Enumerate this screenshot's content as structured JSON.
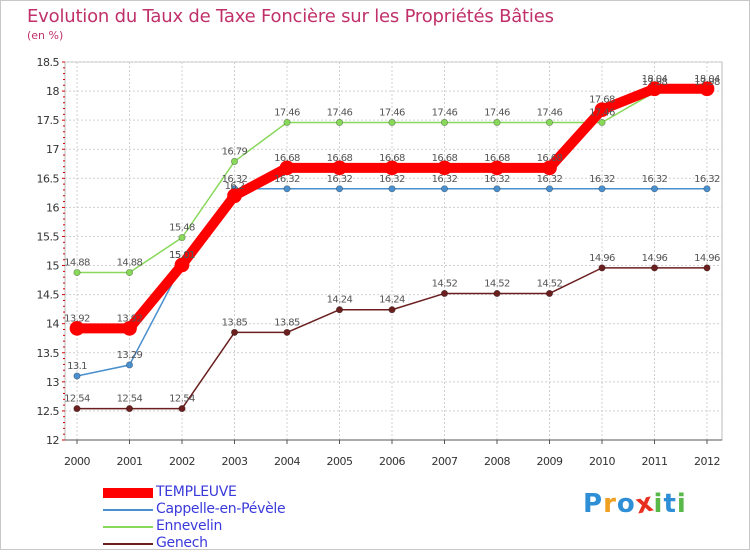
{
  "chart_data": {
    "type": "line",
    "title": "Evolution du Taux de Taxe Foncière sur les Propriétés Bâties",
    "ylabel": "(en %)",
    "xlabel": "",
    "categories": [
      "2000",
      "2001",
      "2002",
      "2003",
      "2004",
      "2005",
      "2006",
      "2007",
      "2008",
      "2009",
      "2010",
      "2011",
      "2012"
    ],
    "ylim": [
      12,
      18.5
    ],
    "yticks": [
      12,
      12.5,
      13,
      13.5,
      14,
      14.5,
      15,
      15.5,
      16,
      16.5,
      17,
      17.5,
      18,
      18.5
    ],
    "grid": true,
    "legend_position": "bottom-left",
    "series": [
      {
        "name": "TEMPLEUVE",
        "color": "#ff0000",
        "values": [
          13.92,
          13.92,
          15.01,
          16.2,
          16.68,
          16.68,
          16.68,
          16.68,
          16.68,
          16.68,
          17.68,
          18.04,
          18.04
        ],
        "labels": [
          "13.92",
          "13.92",
          "15.01",
          "16.2",
          "16.68",
          "16.68",
          "16.68",
          "16.68",
          "16.68",
          "16.68",
          "17.68",
          "18.04",
          "18.04"
        ]
      },
      {
        "name": "Cappelle-en-Pévèle",
        "color": "#4a8fce",
        "values": [
          13.1,
          13.29,
          15.01,
          16.32,
          16.32,
          16.32,
          16.32,
          16.32,
          16.32,
          16.32,
          16.32,
          16.32,
          16.32
        ],
        "labels": [
          "13.1",
          "13.29",
          "15.01",
          "16.32",
          "16.32",
          "16.32",
          "16.32",
          "16.32",
          "16.32",
          "16.32",
          "16.32",
          "16.32",
          "16.32"
        ]
      },
      {
        "name": "Ennevelin",
        "color": "#88d85a",
        "values": [
          14.88,
          14.88,
          15.48,
          16.79,
          17.46,
          17.46,
          17.46,
          17.46,
          17.46,
          17.46,
          17.46,
          17.98,
          17.98
        ],
        "labels": [
          "14.88",
          "14.88",
          "15.48",
          "16.79",
          "17.46",
          "17.46",
          "17.46",
          "17.46",
          "17.46",
          "17.46",
          "17.46",
          "17.98",
          "17.98"
        ]
      },
      {
        "name": "Genech",
        "color": "#6b1f1f",
        "values": [
          12.54,
          12.54,
          12.54,
          13.85,
          13.85,
          14.24,
          14.24,
          14.52,
          14.52,
          14.52,
          14.96,
          14.96,
          14.96
        ],
        "labels": [
          "12.54",
          "12.54",
          "12.54",
          "13.85",
          "13.85",
          "14.24",
          "14.24",
          "14.52",
          "14.52",
          "14.52",
          "14.96",
          "14.96",
          "14.96"
        ]
      }
    ]
  },
  "branding": {
    "logo_letters": [
      "P",
      "r",
      "o",
      "x",
      "i",
      "t",
      "i"
    ],
    "logo_colors": [
      "#2e8fd6",
      "#f0a020",
      "#2e8fd6",
      "#e83020",
      "#58b848",
      "#2e8fd6",
      "#58b848"
    ]
  }
}
